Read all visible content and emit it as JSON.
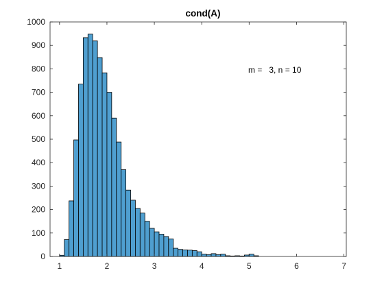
{
  "chart_data": {
    "type": "bar",
    "title": "cond(A)",
    "annotation": "m =   3, n = 10",
    "xlabel": "",
    "ylabel": "",
    "xlim": [
      0.8,
      7.05
    ],
    "ylim": [
      0,
      1000
    ],
    "xticks": [
      1,
      2,
      3,
      4,
      5,
      6,
      7
    ],
    "yticks": [
      0,
      100,
      200,
      300,
      400,
      500,
      600,
      700,
      800,
      900,
      1000
    ],
    "grid": false,
    "bin_width": 0.1,
    "bin_start": 1.0,
    "bar_color": "#4F9FD0",
    "edge_color": "#000000",
    "values": [
      5,
      72,
      237,
      497,
      735,
      933,
      948,
      919,
      848,
      783,
      700,
      590,
      488,
      370,
      283,
      240,
      205,
      185,
      150,
      120,
      105,
      95,
      85,
      75,
      35,
      30,
      28,
      27,
      25,
      20,
      10,
      8,
      12,
      8,
      10,
      3,
      2,
      3,
      2,
      6,
      10,
      3
    ]
  }
}
